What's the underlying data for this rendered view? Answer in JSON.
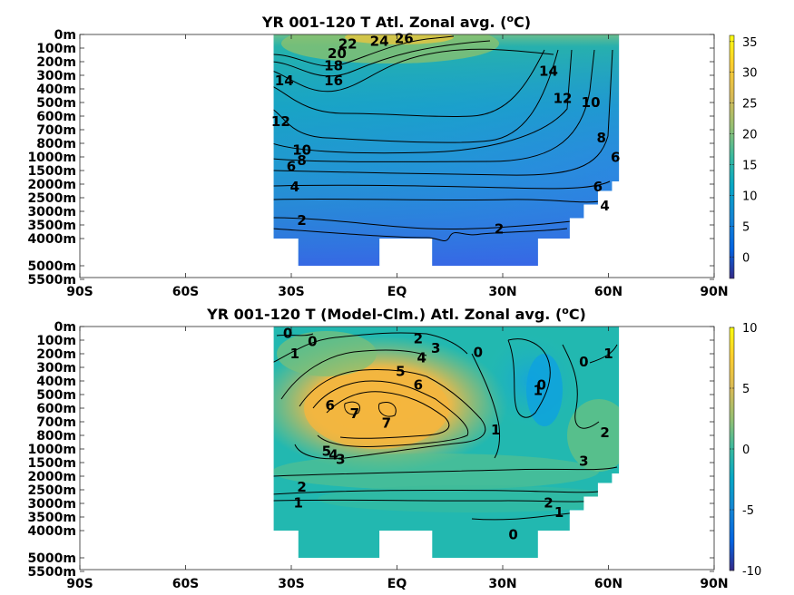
{
  "chart_data": [
    {
      "type": "heatmap",
      "title_main": "YR 001-120 T Atl. Zonal avg. (",
      "title_sup": "o",
      "title_end": "C)",
      "x_ticks": [
        "90S",
        "60S",
        "30S",
        "EQ",
        "30N",
        "60N",
        "90N"
      ],
      "x_values": [
        -90,
        -60,
        -30,
        0,
        30,
        60,
        90
      ],
      "y_ticks": [
        "0m",
        "100m",
        "200m",
        "300m",
        "400m",
        "500m",
        "600m",
        "700m",
        "800m",
        "1000m",
        "1500m",
        "2000m",
        "2500m",
        "3000m",
        "3500m",
        "4000m",
        "5000m",
        "5500m"
      ],
      "y_values": [
        0,
        100,
        200,
        300,
        400,
        500,
        600,
        700,
        800,
        1000,
        1500,
        2000,
        2500,
        3000,
        3500,
        4000,
        5000,
        5500
      ],
      "colorbar": {
        "ticks": [
          "35",
          "30",
          "25",
          "20",
          "15",
          "10",
          "5",
          "0"
        ],
        "tick_values": [
          35,
          30,
          25,
          20,
          15,
          10,
          5,
          0
        ],
        "range": [
          -3.5,
          36
        ],
        "colormap": "parula"
      },
      "contour_labels": [
        {
          "text": "26",
          "lat": 2,
          "depth": 30
        },
        {
          "text": "24",
          "lat": -5,
          "depth": 50
        },
        {
          "text": "22",
          "lat": -14,
          "depth": 70
        },
        {
          "text": "20",
          "lat": -17,
          "depth": 140
        },
        {
          "text": "18",
          "lat": -18,
          "depth": 230
        },
        {
          "text": "16",
          "lat": -18,
          "depth": 340
        },
        {
          "text": "14",
          "lat": -32,
          "depth": 340
        },
        {
          "text": "14",
          "lat": 43,
          "depth": 270
        },
        {
          "text": "12",
          "lat": -33,
          "depth": 640
        },
        {
          "text": "12",
          "lat": 47,
          "depth": 470
        },
        {
          "text": "10",
          "lat": -27,
          "depth": 900
        },
        {
          "text": "10",
          "lat": 55,
          "depth": 500
        },
        {
          "text": "8",
          "lat": -27,
          "depth": 1130
        },
        {
          "text": "8",
          "lat": 58,
          "depth": 760
        },
        {
          "text": "6",
          "lat": -30,
          "depth": 1350
        },
        {
          "text": "6",
          "lat": 62,
          "depth": 1010
        },
        {
          "text": "6",
          "lat": 57,
          "depth": 2100
        },
        {
          "text": "4",
          "lat": -29,
          "depth": 2100
        },
        {
          "text": "4",
          "lat": 59,
          "depth": 2800
        },
        {
          "text": "2",
          "lat": -27,
          "depth": 3330
        },
        {
          "text": "2",
          "lat": 29,
          "depth": 3650
        }
      ]
    },
    {
      "type": "heatmap",
      "title_main": "YR 001-120 T (Model-Clm.) Atl. Zonal avg. (",
      "title_sup": "o",
      "title_end": "C)",
      "x_ticks": [
        "90S",
        "60S",
        "30S",
        "EQ",
        "30N",
        "60N",
        "90N"
      ],
      "x_values": [
        -90,
        -60,
        -30,
        0,
        30,
        60,
        90
      ],
      "y_ticks": [
        "0m",
        "100m",
        "200m",
        "300m",
        "400m",
        "500m",
        "600m",
        "700m",
        "800m",
        "1000m",
        "1500m",
        "2000m",
        "2500m",
        "3000m",
        "3500m",
        "4000m",
        "5000m",
        "5500m"
      ],
      "y_values": [
        0,
        100,
        200,
        300,
        400,
        500,
        600,
        700,
        800,
        1000,
        1500,
        2000,
        2500,
        3000,
        3500,
        4000,
        5000,
        5500
      ],
      "colorbar": {
        "ticks": [
          "10",
          "5",
          "0",
          "-5",
          "-10"
        ],
        "tick_values": [
          10,
          5,
          0,
          -5,
          -10
        ],
        "range": [
          -10,
          10
        ],
        "colormap": "parula"
      },
      "contour_labels": [
        {
          "text": "0",
          "lat": -31,
          "depth": 50
        },
        {
          "text": "0",
          "lat": -24,
          "depth": 110
        },
        {
          "text": "1",
          "lat": -29,
          "depth": 200
        },
        {
          "text": "2",
          "lat": 6,
          "depth": 90
        },
        {
          "text": "3",
          "lat": 11,
          "depth": 160
        },
        {
          "text": "4",
          "lat": 7,
          "depth": 230
        },
        {
          "text": "5",
          "lat": 1,
          "depth": 330
        },
        {
          "text": "6",
          "lat": 6,
          "depth": 430
        },
        {
          "text": "6",
          "lat": -19,
          "depth": 580
        },
        {
          "text": "7",
          "lat": -12,
          "depth": 640
        },
        {
          "text": "7",
          "lat": -3,
          "depth": 710
        },
        {
          "text": "0",
          "lat": 23,
          "depth": 190
        },
        {
          "text": "0",
          "lat": 41,
          "depth": 430
        },
        {
          "text": "0",
          "lat": 53,
          "depth": 260
        },
        {
          "text": "1",
          "lat": 60,
          "depth": 200
        },
        {
          "text": "1",
          "lat": 40,
          "depth": 470
        },
        {
          "text": "1",
          "lat": 28,
          "depth": 760
        },
        {
          "text": "2",
          "lat": 59,
          "depth": 780
        },
        {
          "text": "3",
          "lat": 53,
          "depth": 1450
        },
        {
          "text": "5",
          "lat": -20,
          "depth": 1080
        },
        {
          "text": "4",
          "lat": -18,
          "depth": 1210
        },
        {
          "text": "3",
          "lat": -16,
          "depth": 1380
        },
        {
          "text": "2",
          "lat": -27,
          "depth": 2400
        },
        {
          "text": "1",
          "lat": -28,
          "depth": 2990
        },
        {
          "text": "2",
          "lat": 43,
          "depth": 2980
        },
        {
          "text": "1",
          "lat": 46,
          "depth": 3330
        },
        {
          "text": "0",
          "lat": 33,
          "depth": 4150
        }
      ]
    }
  ]
}
